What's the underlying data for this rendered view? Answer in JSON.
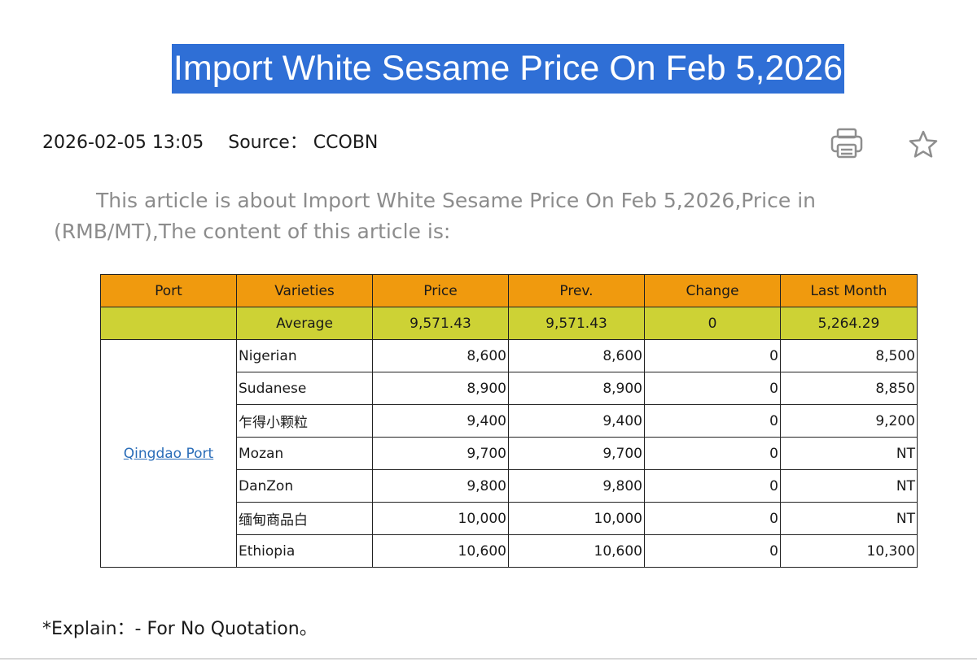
{
  "article": {
    "title": "Import White Sesame Price On Feb 5,2026",
    "date": "2026-02-05 13:05",
    "source": "Source： CCOBN",
    "intro": "This article is about Import White Sesame Price On Feb 5,2026,Price in (RMB/MT),The content of this article is:",
    "footnote": "*Explain：- For No Quotation。"
  },
  "toolbar": {
    "print_icon": "printer-icon",
    "favorite_icon": "star-icon"
  },
  "colors": {
    "title_highlight": "#2f6fd6",
    "header_row": "#f09a0e",
    "average_row": "#cdd235",
    "link": "#2a6db8"
  },
  "table": {
    "headers": [
      "Port",
      "Varieties",
      "Price",
      "Prev.",
      "Change",
      "Last Month"
    ],
    "average": {
      "label": "Average",
      "price": "9,571.43",
      "prev": "9,571.43",
      "change": "0",
      "last_month": "5,264.29"
    },
    "port": "Qingdao Port",
    "rows": [
      {
        "variety": "Nigerian",
        "price": "8,600",
        "prev": "8,600",
        "change": "0",
        "last_month": "8,500"
      },
      {
        "variety": "Sudanese",
        "price": "8,900",
        "prev": "8,900",
        "change": "0",
        "last_month": "8,850"
      },
      {
        "variety": "乍得小颗粒",
        "price": "9,400",
        "prev": "9,400",
        "change": "0",
        "last_month": "9,200"
      },
      {
        "variety": "Mozan",
        "price": "9,700",
        "prev": "9,700",
        "change": "0",
        "last_month": "NT"
      },
      {
        "variety": "DanZon",
        "price": "9,800",
        "prev": "9,800",
        "change": "0",
        "last_month": "NT"
      },
      {
        "variety": "缅甸商品白",
        "price": "10,000",
        "prev": "10,000",
        "change": "0",
        "last_month": "NT"
      },
      {
        "variety": "Ethiopia",
        "price": "10,600",
        "prev": "10,600",
        "change": "0",
        "last_month": "10,300"
      }
    ]
  }
}
